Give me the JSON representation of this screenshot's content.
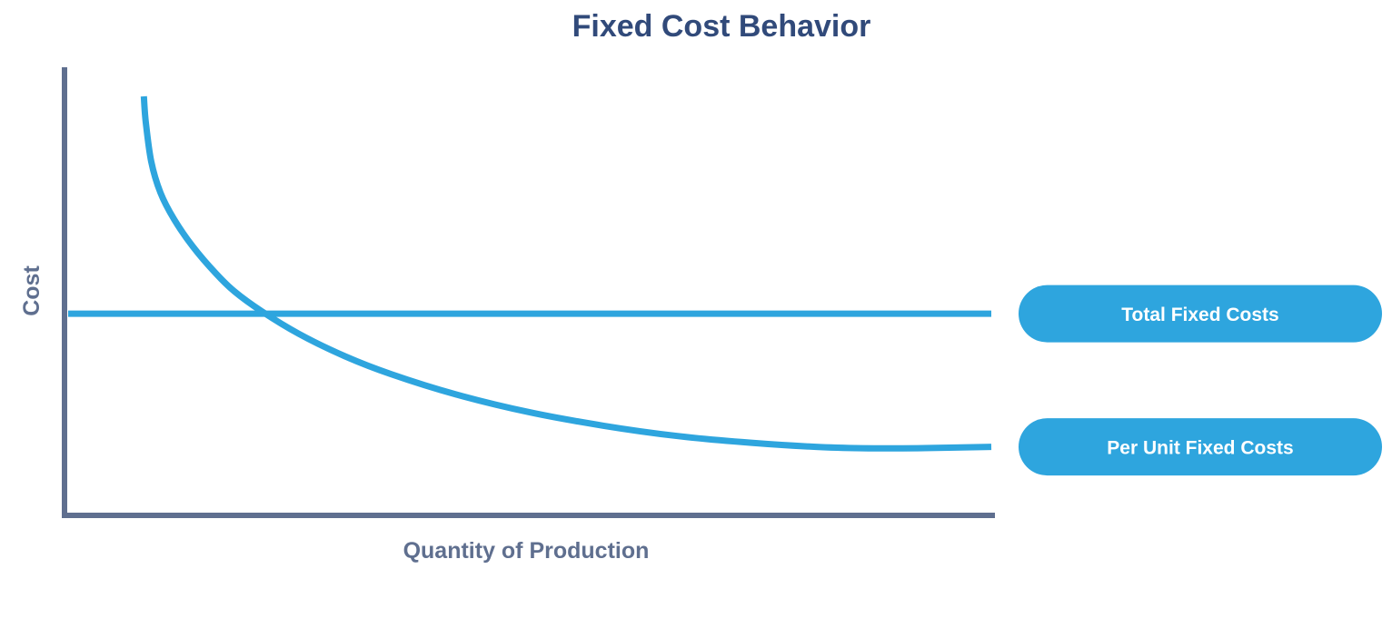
{
  "colors": {
    "title": "#314a7a",
    "axis": "#5f6f8f",
    "axis_label": "#5f6f8f",
    "series": "#2ea5de",
    "legend_text": "#ffffff",
    "background": "#ffffff"
  },
  "chart_data": {
    "type": "line",
    "title": "Fixed Cost Behavior",
    "xlabel": "Quantity of Production",
    "ylabel": "Cost",
    "x_ticks": false,
    "y_ticks": false,
    "grid": false,
    "legend_placement": "right",
    "xlim": [
      0,
      1
    ],
    "ylim": [
      0,
      1
    ],
    "series": [
      {
        "name": "Total Fixed Costs",
        "curve": "linear",
        "x": [
          0.0,
          1.0
        ],
        "y": [
          0.45,
          0.45
        ]
      },
      {
        "name": "Per Unit Fixed Costs",
        "curve": "smooth",
        "x": [
          0.082,
          0.084,
          0.09,
          0.1,
          0.115,
          0.135,
          0.16,
          0.18,
          0.21,
          0.25,
          0.3,
          0.35,
          0.42,
          0.5,
          0.58,
          0.66,
          0.74,
          0.81,
          0.86,
          0.92,
          1.0
        ],
        "y": [
          0.935,
          0.88,
          0.79,
          0.72,
          0.66,
          0.6,
          0.54,
          0.5,
          0.455,
          0.405,
          0.355,
          0.315,
          0.27,
          0.23,
          0.2,
          0.177,
          0.162,
          0.153,
          0.15,
          0.15,
          0.153
        ]
      }
    ]
  }
}
